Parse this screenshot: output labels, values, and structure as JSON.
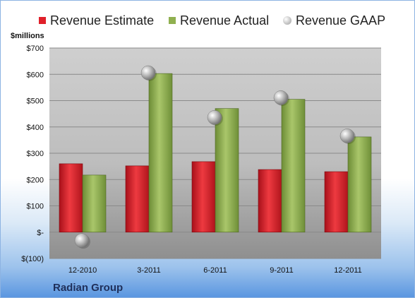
{
  "chart_data": {
    "type": "bar",
    "categories": [
      "12-2010",
      "3-2011",
      "6-2011",
      "9-2011",
      "12-2011"
    ],
    "series": [
      {
        "name": "Revenue Estimate",
        "values": [
          260,
          252,
          268,
          238,
          230
        ],
        "color": "#e0202a"
      },
      {
        "name": "Revenue Actual",
        "values": [
          217,
          603,
          470,
          505,
          362
        ],
        "color": "#90b050"
      },
      {
        "name": "Revenue GAAP",
        "values": [
          -32,
          606,
          436,
          511,
          366
        ],
        "color": "#a8a8a8",
        "marker": "sphere"
      }
    ],
    "ylabel": "$millions",
    "ylim": [
      -100,
      700
    ],
    "ytick_values": [
      -100,
      0,
      100,
      200,
      300,
      400,
      500,
      600,
      700
    ],
    "ytick_labels": [
      "$(100)",
      "$-",
      "$100",
      "$200",
      "$300",
      "$400",
      "$500",
      "$600",
      "$700"
    ],
    "legend_position": "top",
    "grid": true
  },
  "footer": {
    "company": "Radian Group"
  }
}
